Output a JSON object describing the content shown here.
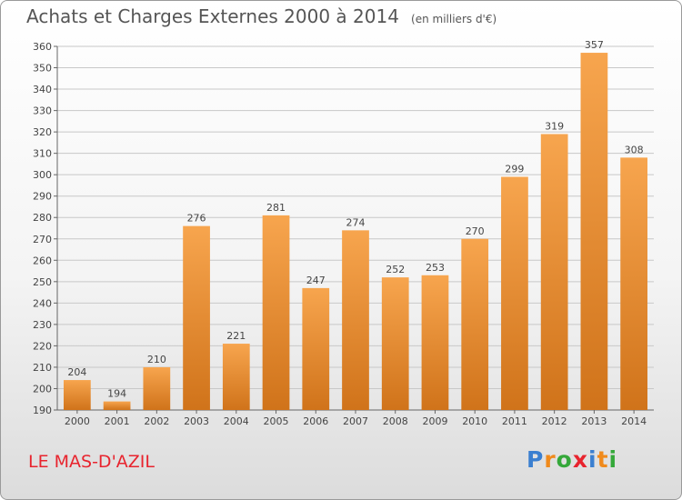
{
  "header": {
    "title": "Achats et Charges Externes 2000 à 2014",
    "subtitle": "(en milliers d'€)"
  },
  "footer": {
    "place": "LE MAS-D'AZIL",
    "logo": {
      "text": "Proxiti",
      "letter_colors": [
        "#3a7fd0",
        "#f08a1c",
        "#35a83a",
        "#e8242e",
        "#3a7fd0",
        "#f08a1c",
        "#35a83a"
      ]
    }
  },
  "colors": {
    "bar_light": "#f7a54e",
    "bar_dark": "#d0731a",
    "grid": "#c8c8c8",
    "place": "#e8242e"
  },
  "chart_data": {
    "type": "bar",
    "title": "Achats et Charges Externes 2000 à 2014",
    "subtitle": "(en milliers d'€)",
    "categories": [
      "2000",
      "2001",
      "2002",
      "2003",
      "2004",
      "2005",
      "2006",
      "2007",
      "2008",
      "2009",
      "2010",
      "2011",
      "2012",
      "2013",
      "2014"
    ],
    "values": [
      204,
      194,
      210,
      276,
      221,
      281,
      247,
      274,
      252,
      253,
      270,
      299,
      319,
      357,
      308
    ],
    "ylim": [
      190,
      360
    ],
    "yticks": [
      190,
      200,
      210,
      220,
      230,
      240,
      250,
      260,
      270,
      280,
      290,
      300,
      310,
      320,
      330,
      340,
      350,
      360
    ],
    "grid": true,
    "legend": "none"
  }
}
